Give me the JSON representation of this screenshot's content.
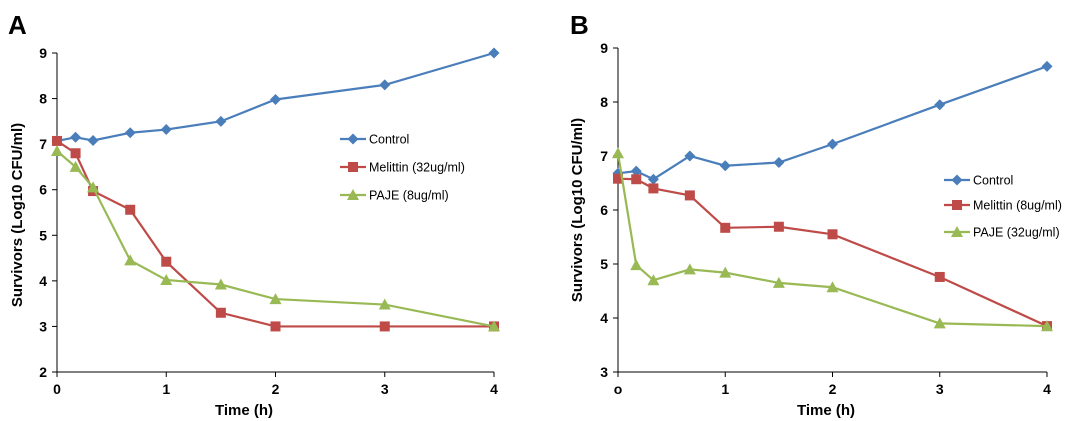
{
  "chart_data": [
    {
      "type": "line",
      "panel_label": "A",
      "xlabel": "Time (h)",
      "ylabel": "Survivors (Log10 CFU/ml)",
      "ylim": [
        2,
        9
      ],
      "xlim": [
        0,
        4
      ],
      "x_ticks": [
        "0",
        "1",
        "2",
        "3",
        "4"
      ],
      "y_ticks": [
        "2",
        "3",
        "4",
        "5",
        "6",
        "7",
        "8",
        "9"
      ],
      "grid": false,
      "legend_position": "right-center",
      "series": [
        {
          "name": "Control",
          "color": "#4a7ebb",
          "marker": "diamond",
          "x": [
            0,
            0.17,
            0.33,
            0.67,
            1,
            1.5,
            2,
            3,
            4
          ],
          "y": [
            7.07,
            7.15,
            7.08,
            7.25,
            7.32,
            7.5,
            7.98,
            8.3,
            9.0
          ]
        },
        {
          "name": "Melittin (32ug/ml)",
          "color": "#be4b48",
          "marker": "square",
          "x": [
            0,
            0.17,
            0.33,
            0.67,
            1,
            1.5,
            2,
            3,
            4
          ],
          "y": [
            7.07,
            6.8,
            5.97,
            5.56,
            4.42,
            3.3,
            3.0,
            3.0,
            3.0
          ]
        },
        {
          "name": "PAJE (8ug/ml)",
          "color": "#98b954",
          "marker": "triangle",
          "x": [
            0,
            0.17,
            0.33,
            0.67,
            1,
            1.5,
            2,
            3,
            4
          ],
          "y": [
            6.85,
            6.5,
            6.05,
            4.45,
            4.02,
            3.92,
            3.6,
            3.48,
            3.0
          ]
        }
      ]
    },
    {
      "type": "line",
      "panel_label": "B",
      "xlabel": "Time (h)",
      "ylabel": "Survivors (Log10 CFU/ml)",
      "ylim": [
        3,
        9
      ],
      "xlim": [
        0,
        4
      ],
      "x_ticks": [
        "o",
        "1",
        "2",
        "3",
        "4"
      ],
      "y_ticks": [
        "3",
        "4",
        "5",
        "6",
        "7",
        "8",
        "9"
      ],
      "grid": false,
      "legend_position": "right-center",
      "series": [
        {
          "name": "Control",
          "color": "#4a7ebb",
          "marker": "diamond",
          "x": [
            0,
            0.17,
            0.33,
            0.67,
            1,
            1.5,
            2,
            3,
            4
          ],
          "y": [
            6.68,
            6.72,
            6.57,
            7.0,
            6.82,
            6.88,
            7.22,
            7.95,
            8.66
          ]
        },
        {
          "name": "Melittin (8ug/ml)",
          "color": "#be4b48",
          "marker": "square",
          "x": [
            0,
            0.17,
            0.33,
            0.67,
            1,
            1.5,
            2,
            3,
            4
          ],
          "y": [
            6.58,
            6.57,
            6.4,
            6.27,
            5.67,
            5.69,
            5.55,
            4.76,
            3.85
          ]
        },
        {
          "name": "PAJE (32ug/ml)",
          "color": "#98b954",
          "marker": "triangle",
          "x": [
            0,
            0.17,
            0.33,
            0.67,
            1,
            1.5,
            2,
            3,
            4
          ],
          "y": [
            7.05,
            4.98,
            4.7,
            4.9,
            4.84,
            4.65,
            4.57,
            3.9,
            3.85
          ]
        }
      ]
    }
  ]
}
